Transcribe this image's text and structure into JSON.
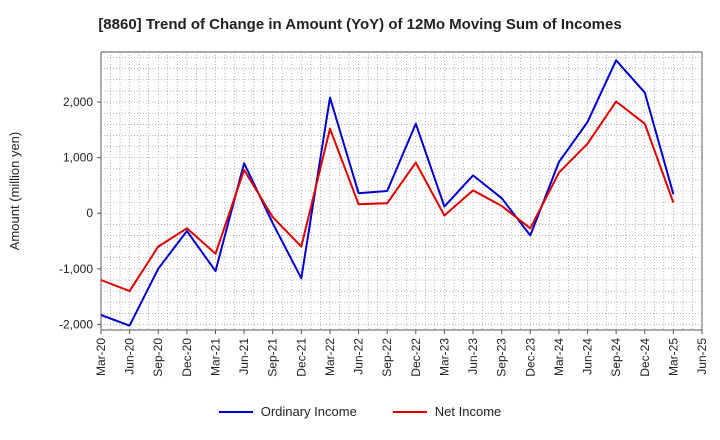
{
  "title": "[8860]  Trend of Change in Amount (YoY) of 12Mo Moving Sum of Incomes",
  "chart_data": {
    "type": "line",
    "ylabel": "Amount (million yen)",
    "xlabel": "",
    "categories": [
      "Mar-20",
      "Jun-20",
      "Sep-20",
      "Dec-20",
      "Mar-21",
      "Jun-21",
      "Sep-21",
      "Dec-21",
      "Mar-22",
      "Jun-22",
      "Sep-22",
      "Dec-22",
      "Mar-23",
      "Jun-23",
      "Sep-23",
      "Dec-23",
      "Mar-24",
      "Jun-24",
      "Sep-24",
      "Dec-24",
      "Mar-25",
      "Jun-25"
    ],
    "yticks": [
      -2000,
      -1000,
      0,
      1000,
      2000
    ],
    "ytick_labels": [
      "-2,000",
      "-1,000",
      "0",
      "1,000",
      "2,000"
    ],
    "ylim": [
      -2100,
      2900
    ],
    "grid": true,
    "series": [
      {
        "name": "Ordinary Income",
        "color": "#0000cc",
        "values": [
          -1830,
          -2020,
          -1000,
          -320,
          -1040,
          900,
          -180,
          -1170,
          2080,
          360,
          400,
          1610,
          120,
          680,
          270,
          -400,
          920,
          1640,
          2750,
          2170,
          340,
          null
        ]
      },
      {
        "name": "Net Income",
        "color": "#dd0000",
        "values": [
          -1200,
          -1400,
          -600,
          -270,
          -730,
          780,
          -70,
          -600,
          1520,
          160,
          180,
          910,
          -40,
          410,
          130,
          -270,
          730,
          1250,
          2010,
          1610,
          190,
          null
        ]
      }
    ],
    "legend_position": "bottom"
  }
}
